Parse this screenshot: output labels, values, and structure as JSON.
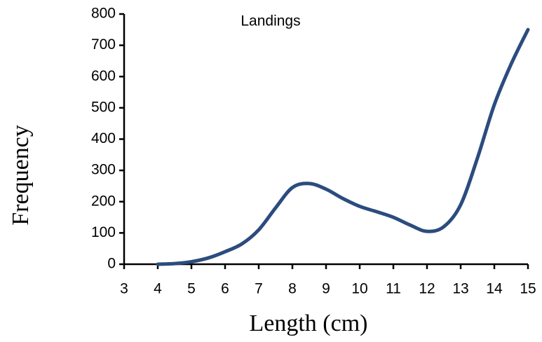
{
  "chart_data": {
    "type": "line",
    "annotation": "Landings",
    "x_label": "Length (cm)",
    "y_label": "Frequency",
    "x": [
      4,
      4.5,
      5,
      5.5,
      6,
      6.5,
      7,
      7.5,
      8,
      8.5,
      9,
      9.5,
      10,
      10.5,
      11,
      11.5,
      12,
      12.5,
      13,
      13.5,
      14,
      14.5,
      15
    ],
    "series": [
      {
        "name": "Landings",
        "color": "#2b4c7e",
        "values": [
          0,
          2,
          8,
          20,
          40,
          65,
          110,
          180,
          245,
          258,
          240,
          210,
          185,
          168,
          150,
          125,
          105,
          120,
          190,
          340,
          510,
          640,
          750
        ]
      }
    ],
    "xlim": [
      3,
      15
    ],
    "xticks": [
      3,
      4,
      5,
      6,
      7,
      8,
      9,
      10,
      11,
      12,
      13,
      14,
      15
    ],
    "ylim": [
      0,
      800
    ],
    "yticks": [
      0,
      100,
      200,
      300,
      400,
      500,
      600,
      700,
      800
    ],
    "grid": false
  }
}
